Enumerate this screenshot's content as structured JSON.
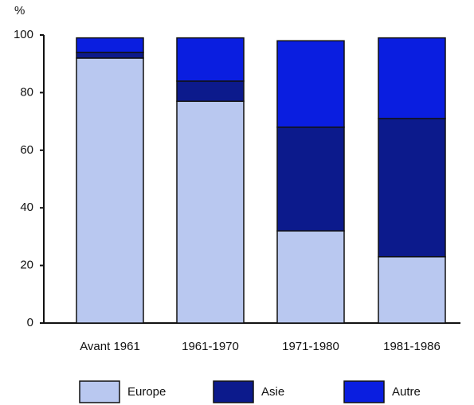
{
  "chart_data": {
    "type": "stacked_bar",
    "y_label": "%",
    "categories": [
      "Avant 1961",
      "1961-1970",
      "1971-1980",
      "1981-1986"
    ],
    "series": [
      {
        "name": "Europe",
        "color": "#b9c8f0",
        "values": [
          92,
          77,
          32,
          23
        ]
      },
      {
        "name": "Asie",
        "color": "#0c1a8c",
        "values": [
          2,
          7,
          36,
          48
        ]
      },
      {
        "name": "Autre",
        "color": "#0a1ee0",
        "values": [
          5,
          15,
          30,
          28
        ]
      }
    ],
    "ylim": [
      0,
      100
    ],
    "yticks": [
      0,
      20,
      40,
      60,
      80,
      100
    ],
    "grid": false
  }
}
